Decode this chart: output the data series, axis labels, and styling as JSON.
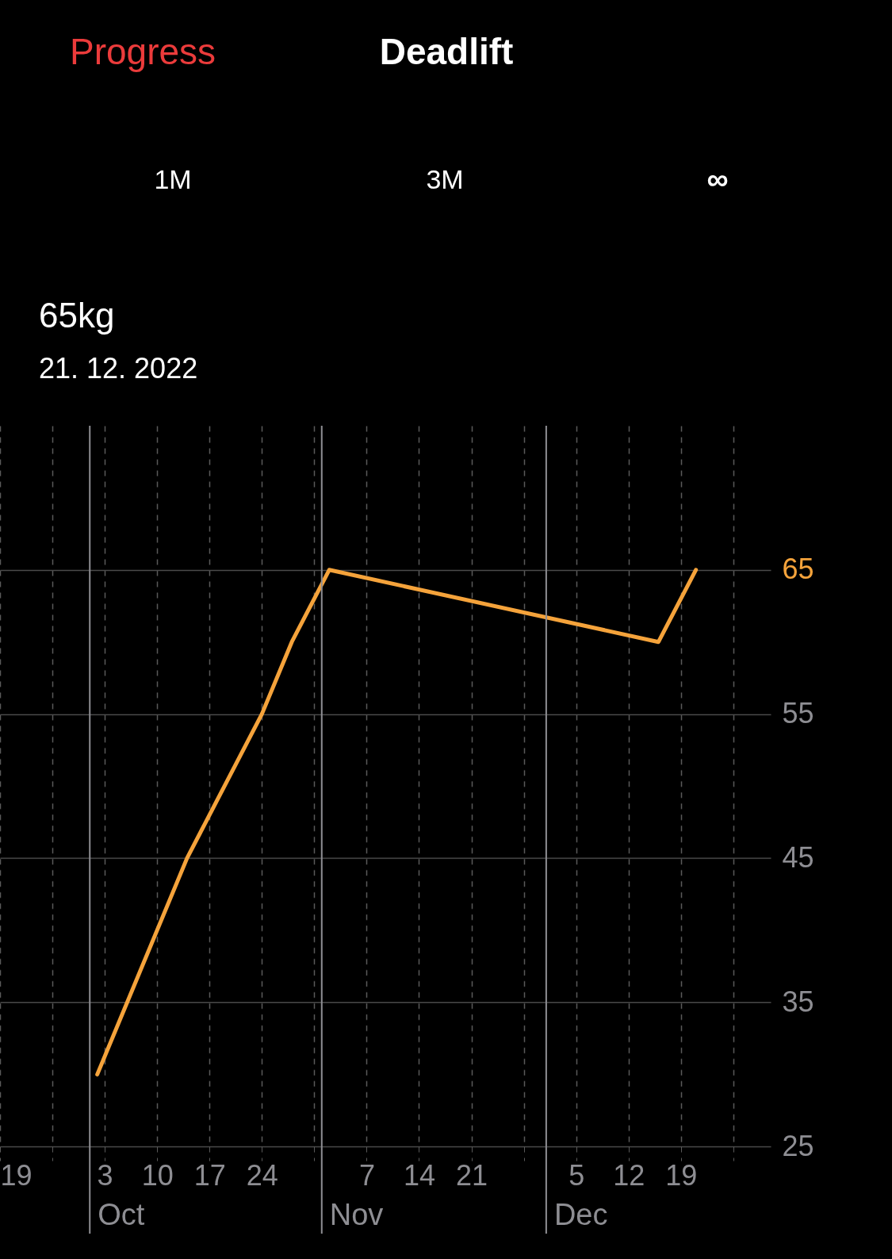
{
  "chart_data": {
    "type": "line",
    "title": "Deadlift",
    "annotations": [
      "Progress",
      "1M",
      "3M",
      "∞",
      "65kg",
      "21. 12. 2022"
    ],
    "x": [
      "2022-10-02",
      "2022-10-14",
      "2022-10-24",
      "2022-10-28",
      "2022-11-02",
      "2022-12-16",
      "2022-12-21"
    ],
    "series": [
      {
        "color": "#f5a33b",
        "values": [
          30,
          45,
          55,
          60,
          65,
          60,
          65
        ]
      }
    ],
    "xlim": [
      "2022-09-19",
      "2022-12-31"
    ],
    "xticks": [
      {
        "value": "2022-09-19",
        "label": "19"
      },
      {
        "value": "2022-09-26",
        "label": null
      },
      {
        "value": "2022-10-03",
        "label": "3"
      },
      {
        "value": "2022-10-10",
        "label": "10"
      },
      {
        "value": "2022-10-17",
        "label": "17"
      },
      {
        "value": "2022-10-24",
        "label": "24"
      },
      {
        "value": "2022-10-31",
        "label": null
      },
      {
        "value": "2022-11-07",
        "label": "7"
      },
      {
        "value": "2022-11-14",
        "label": "14"
      },
      {
        "value": "2022-11-21",
        "label": "21"
      },
      {
        "value": "2022-11-28",
        "label": null
      },
      {
        "value": "2022-12-05",
        "label": "5"
      },
      {
        "value": "2022-12-12",
        "label": "12"
      },
      {
        "value": "2022-12-19",
        "label": "19"
      },
      {
        "value": "2022-12-26",
        "label": null
      }
    ],
    "ylim": [
      25,
      75
    ],
    "yticks": [
      25,
      35,
      45,
      55,
      65
    ],
    "grid": true,
    "line_style": "solid",
    "ref_lines": [
      {
        "axis": "x",
        "value": "2022-10-01",
        "label": "Oct"
      },
      {
        "axis": "x",
        "value": "2022-11-01",
        "label": "Nov"
      },
      {
        "axis": "x",
        "value": "2022-12-01",
        "label": "Dec"
      }
    ]
  }
}
